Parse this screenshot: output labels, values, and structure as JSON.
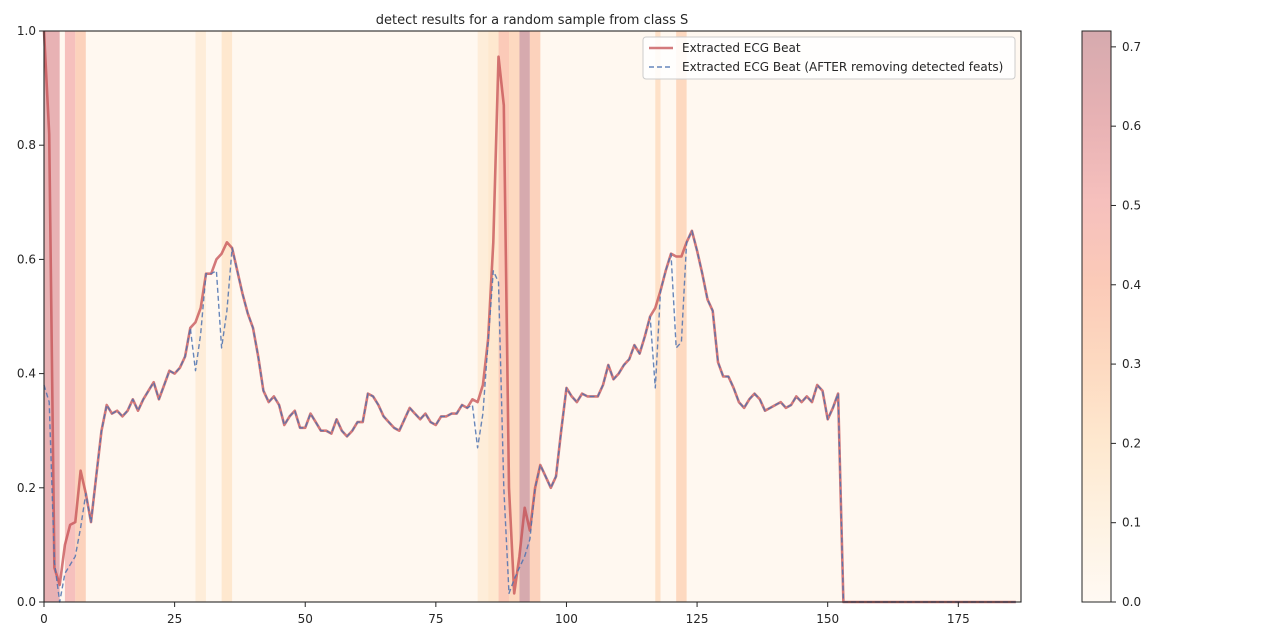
{
  "chart_data": {
    "type": "line",
    "title": "detect results for a random sample from class S",
    "xlabel": "",
    "ylabel": "",
    "xlim": [
      0,
      187
    ],
    "ylim": [
      0,
      1.0
    ],
    "xticks": [
      0,
      25,
      50,
      75,
      100,
      125,
      150,
      175
    ],
    "yticks": [
      0.0,
      0.2,
      0.4,
      0.6,
      0.8,
      1.0
    ],
    "grid": false,
    "legend_position": "upper right",
    "colorbar": {
      "ticks": [
        0.0,
        0.1,
        0.2,
        0.3,
        0.4,
        0.5,
        0.6,
        0.7
      ],
      "range": [
        0,
        0.72
      ],
      "colormap": "OrRd (alpha blended)"
    },
    "series": [
      {
        "name": "Extracted ECG Beat",
        "color": "#c44e52",
        "style": "solid",
        "x": [
          0,
          1,
          2,
          3,
          4,
          5,
          6,
          7,
          8,
          9,
          10,
          11,
          12,
          13,
          14,
          15,
          16,
          17,
          18,
          19,
          20,
          21,
          22,
          23,
          24,
          25,
          26,
          27,
          28,
          29,
          30,
          31,
          32,
          33,
          34,
          35,
          36,
          37,
          38,
          39,
          40,
          41,
          42,
          43,
          44,
          45,
          46,
          47,
          48,
          49,
          50,
          51,
          52,
          53,
          54,
          55,
          56,
          57,
          58,
          59,
          60,
          61,
          62,
          63,
          64,
          65,
          66,
          67,
          68,
          69,
          70,
          71,
          72,
          73,
          74,
          75,
          76,
          77,
          78,
          79,
          80,
          81,
          82,
          83,
          84,
          85,
          86,
          87,
          88,
          89,
          90,
          91,
          92,
          93,
          94,
          95,
          96,
          97,
          98,
          99,
          100,
          101,
          102,
          103,
          104,
          105,
          106,
          107,
          108,
          109,
          110,
          111,
          112,
          113,
          114,
          115,
          116,
          117,
          118,
          119,
          120,
          121,
          122,
          123,
          124,
          125,
          126,
          127,
          128,
          129,
          130,
          131,
          132,
          133,
          134,
          135,
          136,
          137,
          138,
          139,
          140,
          141,
          142,
          143,
          144,
          145,
          146,
          147,
          148,
          149,
          150,
          151,
          152,
          153,
          186
        ],
        "y": [
          1.0,
          0.82,
          0.06,
          0.03,
          0.1,
          0.135,
          0.14,
          0.23,
          0.19,
          0.14,
          0.22,
          0.3,
          0.345,
          0.33,
          0.335,
          0.325,
          0.335,
          0.355,
          0.335,
          0.355,
          0.37,
          0.385,
          0.355,
          0.38,
          0.405,
          0.4,
          0.41,
          0.43,
          0.48,
          0.49,
          0.515,
          0.575,
          0.575,
          0.6,
          0.61,
          0.63,
          0.62,
          0.58,
          0.54,
          0.505,
          0.48,
          0.43,
          0.37,
          0.35,
          0.36,
          0.345,
          0.31,
          0.325,
          0.335,
          0.305,
          0.305,
          0.33,
          0.315,
          0.3,
          0.3,
          0.295,
          0.32,
          0.3,
          0.29,
          0.3,
          0.315,
          0.315,
          0.365,
          0.36,
          0.345,
          0.325,
          0.315,
          0.305,
          0.3,
          0.32,
          0.34,
          0.33,
          0.32,
          0.33,
          0.315,
          0.31,
          0.325,
          0.325,
          0.33,
          0.33,
          0.345,
          0.34,
          0.355,
          0.35,
          0.38,
          0.46,
          0.63,
          0.955,
          0.87,
          0.2,
          0.015,
          0.08,
          0.165,
          0.125,
          0.2,
          0.24,
          0.22,
          0.2,
          0.22,
          0.3,
          0.375,
          0.36,
          0.35,
          0.365,
          0.36,
          0.36,
          0.36,
          0.38,
          0.415,
          0.39,
          0.4,
          0.415,
          0.425,
          0.45,
          0.435,
          0.465,
          0.5,
          0.515,
          0.545,
          0.58,
          0.61,
          0.605,
          0.605,
          0.63,
          0.65,
          0.615,
          0.575,
          0.53,
          0.51,
          0.42,
          0.395,
          0.395,
          0.375,
          0.35,
          0.34,
          0.355,
          0.365,
          0.355,
          0.335,
          0.34,
          0.345,
          0.35,
          0.34,
          0.345,
          0.36,
          0.35,
          0.36,
          0.35,
          0.38,
          0.37,
          0.32,
          0.34,
          0.365,
          0.0,
          0.0
        ]
      },
      {
        "name": "Extracted ECG Beat (AFTER removing detected feats)",
        "color": "#4c72b0",
        "style": "dashed",
        "x": [
          0,
          1,
          2,
          3,
          4,
          5,
          6,
          7,
          8,
          9,
          10,
          11,
          12,
          13,
          14,
          15,
          16,
          17,
          18,
          19,
          20,
          21,
          22,
          23,
          24,
          25,
          26,
          27,
          28,
          29,
          30,
          31,
          32,
          33,
          34,
          35,
          36,
          37,
          38,
          39,
          40,
          41,
          42,
          43,
          44,
          45,
          46,
          47,
          48,
          49,
          50,
          51,
          52,
          53,
          54,
          55,
          56,
          57,
          58,
          59,
          60,
          61,
          62,
          63,
          64,
          65,
          66,
          67,
          68,
          69,
          70,
          71,
          72,
          73,
          74,
          75,
          76,
          77,
          78,
          79,
          80,
          81,
          82,
          83,
          84,
          85,
          86,
          87,
          88,
          89,
          90,
          91,
          92,
          93,
          94,
          95,
          96,
          97,
          98,
          99,
          100,
          101,
          102,
          103,
          104,
          105,
          106,
          107,
          108,
          109,
          110,
          111,
          112,
          113,
          114,
          115,
          116,
          117,
          118,
          119,
          120,
          121,
          122,
          123,
          124,
          125,
          126,
          127,
          128,
          129,
          130,
          131,
          132,
          133,
          134,
          135,
          136,
          137,
          138,
          139,
          140,
          141,
          142,
          143,
          144,
          145,
          146,
          147,
          148,
          149,
          150,
          151,
          152,
          153,
          186
        ],
        "y": [
          0.38,
          0.35,
          0.07,
          0.0,
          0.05,
          0.065,
          0.08,
          0.13,
          0.19,
          0.14,
          0.22,
          0.3,
          0.345,
          0.33,
          0.335,
          0.325,
          0.335,
          0.355,
          0.335,
          0.355,
          0.37,
          0.385,
          0.355,
          0.38,
          0.405,
          0.4,
          0.41,
          0.43,
          0.48,
          0.405,
          0.47,
          0.575,
          0.575,
          0.58,
          0.445,
          0.51,
          0.62,
          0.58,
          0.54,
          0.505,
          0.48,
          0.43,
          0.37,
          0.35,
          0.36,
          0.345,
          0.31,
          0.325,
          0.335,
          0.305,
          0.305,
          0.33,
          0.315,
          0.3,
          0.3,
          0.295,
          0.32,
          0.3,
          0.29,
          0.3,
          0.315,
          0.315,
          0.365,
          0.36,
          0.345,
          0.325,
          0.315,
          0.305,
          0.3,
          0.32,
          0.34,
          0.33,
          0.32,
          0.33,
          0.315,
          0.31,
          0.325,
          0.325,
          0.33,
          0.33,
          0.345,
          0.34,
          0.345,
          0.27,
          0.33,
          0.455,
          0.58,
          0.56,
          0.2,
          0.015,
          0.04,
          0.06,
          0.08,
          0.11,
          0.2,
          0.24,
          0.22,
          0.2,
          0.22,
          0.3,
          0.375,
          0.36,
          0.35,
          0.365,
          0.36,
          0.36,
          0.36,
          0.38,
          0.415,
          0.39,
          0.4,
          0.415,
          0.425,
          0.45,
          0.435,
          0.465,
          0.5,
          0.375,
          0.545,
          0.58,
          0.61,
          0.445,
          0.455,
          0.63,
          0.65,
          0.615,
          0.575,
          0.53,
          0.51,
          0.42,
          0.395,
          0.395,
          0.375,
          0.35,
          0.34,
          0.355,
          0.365,
          0.355,
          0.335,
          0.34,
          0.345,
          0.35,
          0.34,
          0.345,
          0.36,
          0.35,
          0.36,
          0.35,
          0.38,
          0.37,
          0.32,
          0.34,
          0.365,
          0.0,
          0.0
        ]
      }
    ],
    "heat_bands": [
      {
        "x0": 0,
        "x1": 3,
        "value": 0.6
      },
      {
        "x0": 4,
        "x1": 6,
        "value": 0.5
      },
      {
        "x0": 6,
        "x1": 8,
        "value": 0.35
      },
      {
        "x0": 29,
        "x1": 31,
        "value": 0.15
      },
      {
        "x0": 34,
        "x1": 36,
        "value": 0.2
      },
      {
        "x0": 83,
        "x1": 85,
        "value": 0.15
      },
      {
        "x0": 85,
        "x1": 87,
        "value": 0.2
      },
      {
        "x0": 87,
        "x1": 89,
        "value": 0.4
      },
      {
        "x0": 89,
        "x1": 91,
        "value": 0.3
      },
      {
        "x0": 91,
        "x1": 93,
        "value": 0.72
      },
      {
        "x0": 93,
        "x1": 95,
        "value": 0.35
      },
      {
        "x0": 117,
        "x1": 118,
        "value": 0.25
      },
      {
        "x0": 121,
        "x1": 123,
        "value": 0.3
      }
    ]
  }
}
